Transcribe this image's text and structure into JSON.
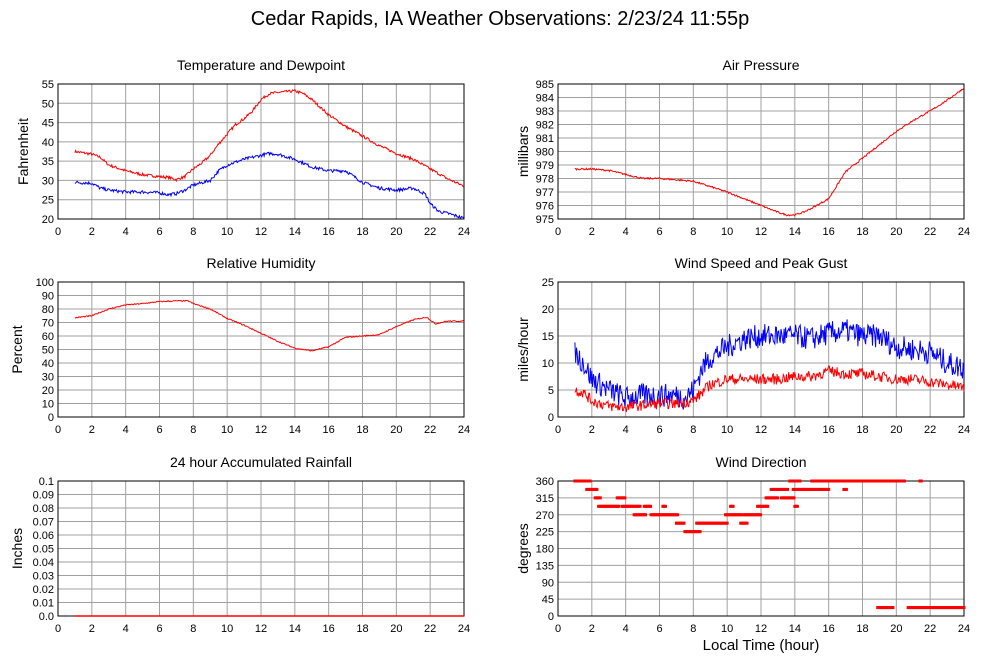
{
  "page": {
    "title": "Cedar Rapids, IA Weather Observations: 2/23/24 11:55p",
    "xlabel": "Local Time (hour)"
  },
  "colors": {
    "red": "#ff0000",
    "blue": "#0000ff",
    "grid": "#a0a0a0"
  },
  "chart_data": [
    {
      "id": "temp",
      "type": "line",
      "title": "Temperature and Dewpoint",
      "ylabel": "Fahrenheit",
      "xlim": [
        0,
        24
      ],
      "ylim": [
        20,
        55
      ],
      "xticks": [
        0,
        2,
        4,
        6,
        8,
        10,
        12,
        14,
        16,
        18,
        20,
        22,
        24
      ],
      "yticks": [
        20,
        25,
        30,
        35,
        40,
        45,
        50,
        55
      ],
      "grid": true,
      "series": [
        {
          "color": "#ff0000",
          "noise": 0.35,
          "points": [
            [
              1,
              37.5
            ],
            [
              2,
              36.8
            ],
            [
              2.5,
              36
            ],
            [
              3,
              34
            ],
            [
              4,
              32.5
            ],
            [
              5,
              31.5
            ],
            [
              6,
              31
            ],
            [
              6.5,
              30.8
            ],
            [
              7,
              30.2
            ],
            [
              7.5,
              31
            ],
            [
              8,
              33
            ],
            [
              8.5,
              34.5
            ],
            [
              9,
              36.5
            ],
            [
              9.5,
              39.5
            ],
            [
              10,
              42
            ],
            [
              10.5,
              44.5
            ],
            [
              11,
              46
            ],
            [
              11.5,
              48
            ],
            [
              12,
              51
            ],
            [
              12.5,
              52.5
            ],
            [
              13,
              52.8
            ],
            [
              13.5,
              53
            ],
            [
              14,
              53.2
            ],
            [
              14.5,
              52.5
            ],
            [
              15,
              51
            ],
            [
              15.5,
              49
            ],
            [
              16,
              47
            ],
            [
              17,
              44
            ],
            [
              18,
              41.5
            ],
            [
              19,
              39
            ],
            [
              20,
              37
            ],
            [
              21,
              35.5
            ],
            [
              22,
              33
            ],
            [
              23,
              30.5
            ],
            [
              24,
              28.5
            ]
          ]
        },
        {
          "color": "#0000ff",
          "noise": 0.4,
          "points": [
            [
              1,
              29.5
            ],
            [
              2,
              29.3
            ],
            [
              2.5,
              28
            ],
            [
              3,
              27.5
            ],
            [
              4,
              27
            ],
            [
              5,
              27
            ],
            [
              6,
              26.8
            ],
            [
              6.5,
              26.3
            ],
            [
              7,
              26.6
            ],
            [
              7.5,
              27.5
            ],
            [
              8,
              28.8
            ],
            [
              9,
              30
            ],
            [
              9.5,
              32.5
            ],
            [
              10,
              34
            ],
            [
              11,
              35.5
            ],
            [
              12,
              36.5
            ],
            [
              12.5,
              37
            ],
            [
              13,
              36.8
            ],
            [
              14,
              35.5
            ],
            [
              15,
              33.5
            ],
            [
              16,
              32.5
            ],
            [
              17,
              32.5
            ],
            [
              18,
              29.5
            ],
            [
              19,
              28
            ],
            [
              20,
              27.5
            ],
            [
              21,
              28
            ],
            [
              21.7,
              26.5
            ],
            [
              22,
              24
            ],
            [
              22.5,
              22
            ],
            [
              23,
              21.5
            ],
            [
              24,
              20.2
            ]
          ]
        }
      ]
    },
    {
      "id": "pressure",
      "type": "line",
      "title": "Air Pressure",
      "ylabel": "millibars",
      "xlim": [
        0,
        24
      ],
      "ylim": [
        975,
        985
      ],
      "xticks": [
        0,
        2,
        4,
        6,
        8,
        10,
        12,
        14,
        16,
        18,
        20,
        22,
        24
      ],
      "yticks": [
        975,
        976,
        977,
        978,
        979,
        980,
        981,
        982,
        983,
        984,
        985
      ],
      "grid": true,
      "series": [
        {
          "color": "#ff0000",
          "noise": 0.06,
          "points": [
            [
              1,
              978.7
            ],
            [
              2,
              978.7
            ],
            [
              3,
              978.6
            ],
            [
              4,
              978.3
            ],
            [
              5,
              978
            ],
            [
              6,
              978
            ],
            [
              7,
              977.9
            ],
            [
              8,
              977.8
            ],
            [
              9,
              977.4
            ],
            [
              10,
              977
            ],
            [
              11,
              976.5
            ],
            [
              12,
              976
            ],
            [
              13,
              975.5
            ],
            [
              13.5,
              975.3
            ],
            [
              14,
              975.3
            ],
            [
              14.5,
              975.5
            ],
            [
              15,
              975.8
            ],
            [
              16,
              976.5
            ],
            [
              17,
              978.5
            ],
            [
              18,
              979.5
            ],
            [
              19,
              980.5
            ],
            [
              20,
              981.5
            ],
            [
              21,
              982.3
            ],
            [
              22,
              983
            ],
            [
              23,
              983.8
            ],
            [
              24,
              984.7
            ]
          ]
        }
      ]
    },
    {
      "id": "humidity",
      "type": "line",
      "title": "Relative Humidity",
      "ylabel": "Percent",
      "xlim": [
        0,
        24
      ],
      "ylim": [
        0,
        100
      ],
      "xticks": [
        0,
        2,
        4,
        6,
        8,
        10,
        12,
        14,
        16,
        18,
        20,
        22,
        24
      ],
      "yticks": [
        0,
        10,
        20,
        30,
        40,
        50,
        60,
        70,
        80,
        90,
        100
      ],
      "grid": true,
      "series": [
        {
          "color": "#ff0000",
          "noise": 0.4,
          "points": [
            [
              1,
              73.5
            ],
            [
              2,
              75
            ],
            [
              3,
              80
            ],
            [
              4,
              83
            ],
            [
              5,
              84
            ],
            [
              6,
              85.5
            ],
            [
              7,
              86
            ],
            [
              7.7,
              86
            ],
            [
              8,
              84
            ],
            [
              9,
              80
            ],
            [
              10,
              73
            ],
            [
              11,
              68
            ],
            [
              12,
              62
            ],
            [
              13,
              56
            ],
            [
              14,
              51
            ],
            [
              15,
              49
            ],
            [
              16,
              52
            ],
            [
              17,
              59
            ],
            [
              18,
              60
            ],
            [
              19,
              61
            ],
            [
              20,
              67
            ],
            [
              21,
              72
            ],
            [
              21.8,
              74
            ],
            [
              22.3,
              69
            ],
            [
              23,
              71
            ],
            [
              24,
              71
            ]
          ]
        }
      ]
    },
    {
      "id": "wind",
      "type": "line",
      "title": "Wind Speed and Peak Gust",
      "ylabel": "miles/hour",
      "xlim": [
        0,
        24
      ],
      "ylim": [
        0,
        25
      ],
      "xticks": [
        0,
        2,
        4,
        6,
        8,
        10,
        12,
        14,
        16,
        18,
        20,
        22,
        24
      ],
      "yticks": [
        0,
        5,
        10,
        15,
        20,
        25
      ],
      "grid": true,
      "series": [
        {
          "color": "#0000ff",
          "noise": 2.2,
          "points": [
            [
              1,
              12
            ],
            [
              1.5,
              10
            ],
            [
              2,
              7
            ],
            [
              3,
              5
            ],
            [
              4,
              3.5
            ],
            [
              5,
              4
            ],
            [
              6,
              4
            ],
            [
              7,
              4
            ],
            [
              7.5,
              3.5
            ],
            [
              8,
              5
            ],
            [
              8.5,
              9
            ],
            [
              9,
              11
            ],
            [
              10,
              13
            ],
            [
              11,
              14.5
            ],
            [
              12,
              15
            ],
            [
              13,
              15
            ],
            [
              14,
              15
            ],
            [
              15,
              14.5
            ],
            [
              16,
              15.5
            ],
            [
              17,
              16
            ],
            [
              18,
              15
            ],
            [
              19,
              15
            ],
            [
              20,
              13
            ],
            [
              21,
              12.5
            ],
            [
              22,
              12
            ],
            [
              23,
              10
            ],
            [
              24,
              9
            ]
          ]
        },
        {
          "color": "#ff0000",
          "noise": 1,
          "points": [
            [
              1,
              5
            ],
            [
              1.5,
              4.5
            ],
            [
              2,
              3
            ],
            [
              3,
              2
            ],
            [
              4,
              1.8
            ],
            [
              5,
              2.2
            ],
            [
              6,
              2.5
            ],
            [
              7,
              2.5
            ],
            [
              8,
              3
            ],
            [
              9,
              6
            ],
            [
              10,
              7
            ],
            [
              11,
              7
            ],
            [
              12,
              7
            ],
            [
              13,
              7
            ],
            [
              14,
              7.5
            ],
            [
              15,
              7.5
            ],
            [
              16,
              8.5
            ],
            [
              17,
              8
            ],
            [
              18,
              8
            ],
            [
              19,
              7.5
            ],
            [
              20,
              7
            ],
            [
              21,
              7
            ],
            [
              22,
              6.5
            ],
            [
              23,
              6
            ],
            [
              24,
              5.5
            ]
          ]
        }
      ]
    },
    {
      "id": "rain",
      "type": "line",
      "title": "24 hour Accumulated Rainfall",
      "ylabel": "Inches",
      "xlim": [
        0,
        24
      ],
      "ylim": [
        0,
        0.1
      ],
      "xticks": [
        0,
        2,
        4,
        6,
        8,
        10,
        12,
        14,
        16,
        18,
        20,
        22,
        24
      ],
      "yticks": [
        0.0,
        0.01,
        0.02,
        0.03,
        0.04,
        0.05,
        0.06,
        0.07,
        0.08,
        0.09,
        0.1
      ],
      "ytick_labels": [
        "0.0",
        "0.01",
        "0.02",
        "0.03",
        "0.04",
        "0.05",
        "0.06",
        "0.07",
        "0.08",
        "0.09",
        "0.1"
      ],
      "grid": true,
      "series": [
        {
          "color": "#ff0000",
          "noise": 0,
          "points": [
            [
              1,
              0
            ],
            [
              24,
              0
            ]
          ]
        }
      ]
    },
    {
      "id": "direction",
      "type": "scatter",
      "title": "Wind Direction",
      "ylabel": "degrees",
      "xlim": [
        0,
        24
      ],
      "ylim": [
        0,
        360
      ],
      "xticks": [
        0,
        2,
        4,
        6,
        8,
        10,
        12,
        14,
        16,
        18,
        20,
        22,
        24
      ],
      "yticks": [
        0,
        45,
        90,
        135,
        180,
        225,
        270,
        315,
        360
      ],
      "grid": true,
      "series": [
        {
          "color": "#ff0000",
          "runs": [
            [
              1.0,
              1.9,
              360
            ],
            [
              1.7,
              2.3,
              337.5
            ],
            [
              2.2,
              2.5,
              315
            ],
            [
              2.4,
              3.6,
              292.5
            ],
            [
              3.5,
              4.0,
              315
            ],
            [
              3.8,
              4.9,
              292.5
            ],
            [
              4.5,
              5.2,
              270
            ],
            [
              5.1,
              5.5,
              292.5
            ],
            [
              5.5,
              7.1,
              270
            ],
            [
              6.2,
              6.4,
              292.5
            ],
            [
              7.0,
              7.5,
              247.5
            ],
            [
              7.5,
              8.4,
              225
            ],
            [
              8.2,
              10.0,
              247.5
            ],
            [
              9.9,
              10.9,
              270
            ],
            [
              10.2,
              10.4,
              292.5
            ],
            [
              10.8,
              11.2,
              247.5
            ],
            [
              11.0,
              12.0,
              270
            ],
            [
              11.8,
              12.4,
              292.5
            ],
            [
              12.3,
              13.0,
              315
            ],
            [
              12.6,
              13.6,
              337.5
            ],
            [
              13.2,
              14.0,
              315
            ],
            [
              13.7,
              14.3,
              360
            ],
            [
              13.9,
              14.5,
              337.5
            ],
            [
              14.0,
              14.2,
              292.5
            ],
            [
              14.5,
              16.0,
              337.5
            ],
            [
              15.0,
              20.5,
              360
            ],
            [
              16.9,
              17.1,
              337.5
            ],
            [
              21.4,
              21.5,
              360
            ],
            [
              18.9,
              19.8,
              22.5
            ],
            [
              20.7,
              24.0,
              22.5
            ]
          ]
        }
      ]
    }
  ]
}
